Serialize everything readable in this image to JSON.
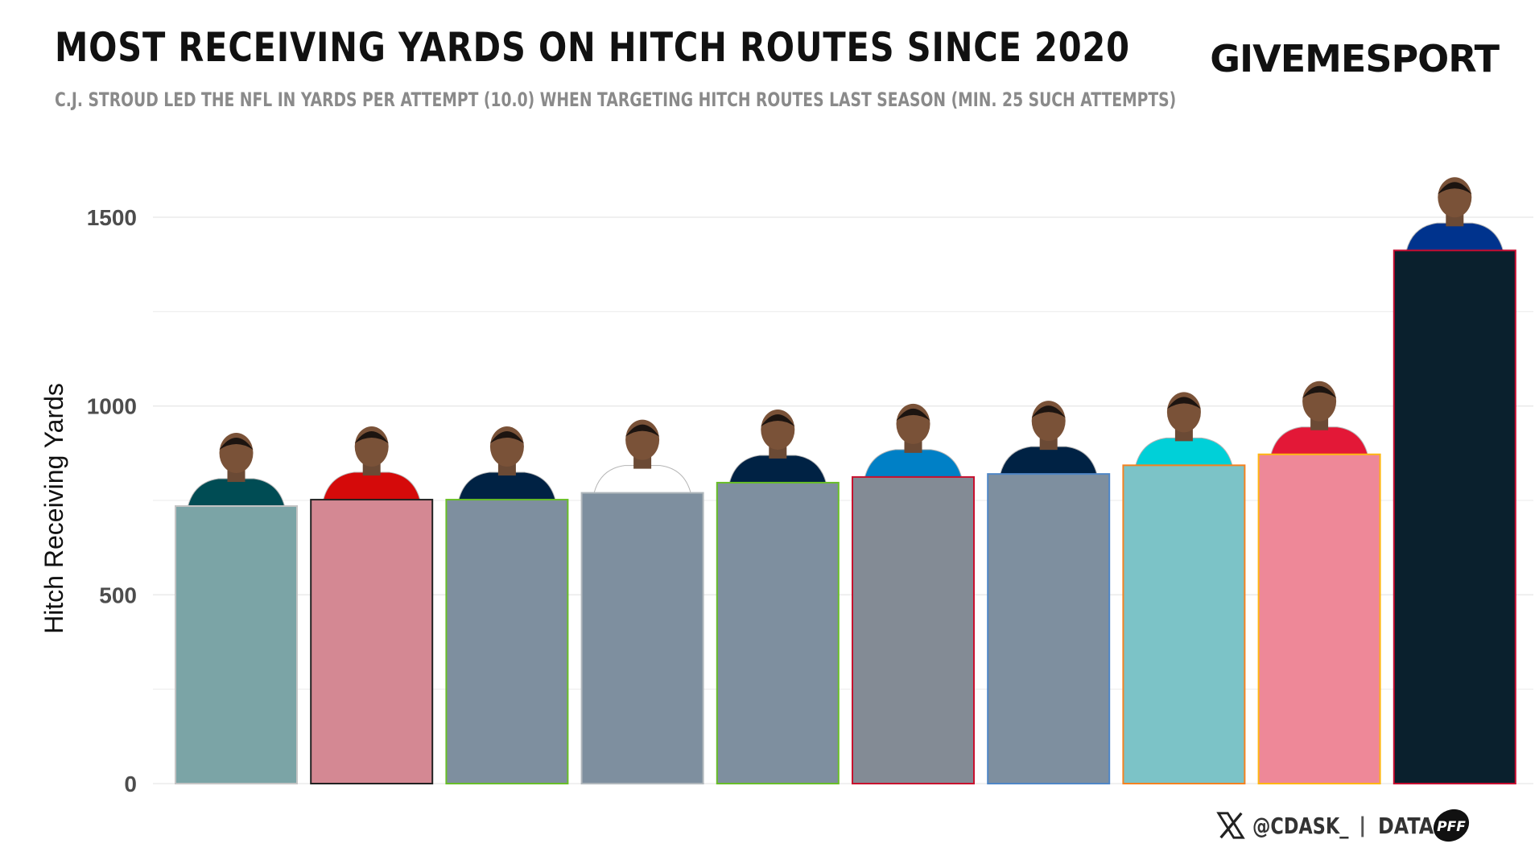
{
  "header": {
    "title": "MOST RECEIVING YARDS ON HITCH ROUTES SINCE 2020",
    "subtitle": "C.J. STROUD LED THE NFL IN YARDS PER ATTEMPT (10.0) WHEN TARGETING HITCH ROUTES LAST SEASON (MIN. 25 SUCH ATTEMPTS)",
    "brand": "GIVEMESPORT"
  },
  "footer": {
    "x_icon": "x-logo-icon",
    "handle": "@CDASK_",
    "separator": "|",
    "data_label": "DATA",
    "data_icon": "pff-logo-icon"
  },
  "chart_data": {
    "type": "bar",
    "ylabel": "Hitch Receiving Yards",
    "xlabel": "",
    "ylim": [
      0,
      1500
    ],
    "yticks": [
      0,
      500,
      1000,
      1500
    ],
    "grid": true,
    "values": [
      735,
      752,
      752,
      770,
      797,
      812,
      820,
      843,
      872,
      1412
    ],
    "bar_fill_colors": [
      "#7ba4a6",
      "#d48893",
      "#7e8f9f",
      "#7e8f9f",
      "#7e8f9f",
      "#838b95",
      "#7e8f9f",
      "#7cc3c7",
      "#ee8898",
      "#0a202d"
    ],
    "bar_border_colors": [
      "#c4c4c4",
      "#222222",
      "#69be28",
      "#b0b7bc",
      "#69be28",
      "#c8102e",
      "#4f86c6",
      "#f58220",
      "#ffb612",
      "#c60c30"
    ],
    "player_icons": [
      "player-photo-icon",
      "player-photo-icon",
      "player-photo-icon",
      "player-photo-icon",
      "player-photo-icon",
      "player-photo-icon",
      "player-photo-icon",
      "player-photo-icon",
      "player-photo-icon",
      "player-photo-icon"
    ],
    "jersey_colors": [
      "#004c54",
      "#d50a0a",
      "#002244",
      "#ffffff",
      "#002244",
      "#0080c6",
      "#002244",
      "#00d0d8",
      "#e31837",
      "#00338d"
    ]
  }
}
